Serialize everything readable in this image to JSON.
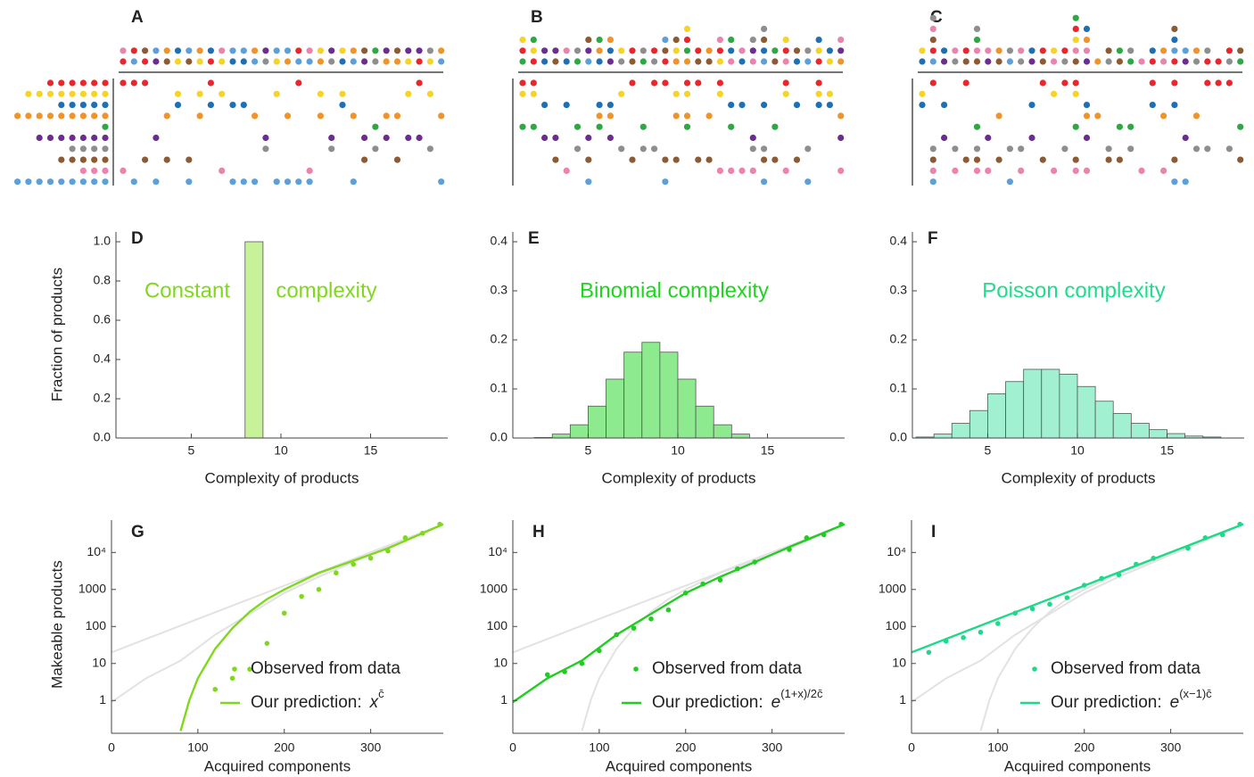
{
  "chart_data": [
    {
      "type": "matrix",
      "label": "A"
    },
    {
      "type": "matrix",
      "label": "B"
    },
    {
      "type": "matrix",
      "label": "C"
    },
    {
      "type": "histogram",
      "label": "D",
      "annotations": [
        "Constant",
        "complexity"
      ],
      "annotation_color": "#7fd81c",
      "bins": [
        8,
        9
      ],
      "counts": [
        1.0
      ],
      "color": "#c8f29a",
      "xlabel": "Complexity of products",
      "ylabel": "Fraction of products",
      "xlim": [
        0.8,
        19.3
      ],
      "ylim": [
        0,
        1.05
      ],
      "xticks": [
        5,
        10,
        15
      ],
      "yticks": [
        {
          "value": 0,
          "label": "0.0"
        },
        0.2,
        0.4,
        0.6,
        0.8,
        {
          "value": 1,
          "label": "1.0"
        }
      ]
    },
    {
      "type": "histogram",
      "label": "E",
      "annotations": [
        "Binomial complexity"
      ],
      "annotation_color": "#1fd41f",
      "bins": [
        2,
        3,
        4,
        5,
        6,
        7,
        8,
        9,
        10,
        11,
        12,
        13,
        14
      ],
      "counts": [
        0.001,
        0.008,
        0.027,
        0.065,
        0.12,
        0.175,
        0.195,
        0.175,
        0.12,
        0.065,
        0.027,
        0.008
      ],
      "color": "#8eea8e",
      "xlabel": "Complexity of products",
      "xlim": [
        0.8,
        19.3
      ],
      "ylim": [
        0,
        0.42
      ],
      "xticks": [
        5,
        10,
        15
      ],
      "yticks": [
        {
          "value": 0,
          "label": "0.0"
        },
        0.1,
        0.2,
        0.3,
        0.4
      ]
    },
    {
      "type": "histogram",
      "label": "F",
      "annotations": [
        "Poisson complexity"
      ],
      "annotation_color": "#1fdc8c",
      "bins": [
        1,
        2,
        3,
        4,
        5,
        6,
        7,
        8,
        9,
        10,
        11,
        12,
        13,
        14,
        15,
        16,
        17,
        18
      ],
      "counts": [
        0.002,
        0.008,
        0.03,
        0.056,
        0.09,
        0.115,
        0.14,
        0.14,
        0.13,
        0.105,
        0.075,
        0.05,
        0.03,
        0.017,
        0.009,
        0.004,
        0.002
      ],
      "color": "#a2f0d2",
      "xlabel": "Complexity of products",
      "xlim": [
        0.8,
        19.3
      ],
      "ylim": [
        0,
        0.42
      ],
      "xticks": [
        5,
        10,
        15
      ],
      "yticks": [
        {
          "value": 0,
          "label": "0.0"
        },
        0.1,
        0.2,
        0.3,
        0.4
      ]
    },
    {
      "type": "line",
      "label": "G",
      "ylog": true,
      "context_color": "#e2e2e2",
      "xlabel": "Acquired components",
      "ylabel": "Makeable products",
      "xlim": [
        0,
        384
      ],
      "ylim": [
        0.13,
        75000
      ],
      "xticks": [
        0,
        100,
        200,
        300
      ],
      "yticks": [
        1,
        10,
        100,
        1000,
        {
          "value": 10000,
          "label": "10⁴"
        }
      ],
      "series": [
        {
          "name": "Observed from data",
          "mode": "markers",
          "color": "#7fd81c",
          "x": [
            120,
            140,
            160,
            180,
            200,
            220,
            240,
            260,
            280,
            300,
            320,
            340,
            360,
            380
          ],
          "values": [
            2,
            4,
            7,
            35,
            230,
            650,
            1000,
            2800,
            4800,
            7000,
            11000,
            25000,
            33000,
            58000
          ]
        },
        {
          "name": "Our prediction:",
          "mode": "line",
          "color": "#7fd81c",
          "formula": {
            "base": "x",
            "exponent": "c̄"
          },
          "x": [
            80,
            90,
            100,
            120,
            140,
            160,
            180,
            200,
            240,
            280,
            320,
            384
          ],
          "values": [
            0.15,
            1,
            4,
            25,
            90,
            250,
            550,
            1000,
            2800,
            6000,
            13000,
            58000
          ]
        }
      ]
    },
    {
      "type": "line",
      "label": "H",
      "ylog": true,
      "context_color": "#e2e2e2",
      "xlabel": "Acquired components",
      "xlim": [
        0,
        384
      ],
      "ylim": [
        0.13,
        75000
      ],
      "xticks": [
        0,
        100,
        200,
        300
      ],
      "yticks": [
        1,
        10,
        100,
        1000,
        {
          "value": 10000,
          "label": "10⁴"
        }
      ],
      "series": [
        {
          "name": "Observed from data",
          "mode": "markers",
          "color": "#22cc22",
          "x": [
            40,
            60,
            80,
            100,
            120,
            140,
            160,
            180,
            200,
            220,
            240,
            260,
            280,
            320,
            340,
            360,
            380
          ],
          "values": [
            5,
            6,
            10,
            22,
            60,
            90,
            160,
            280,
            800,
            1400,
            1800,
            3600,
            5500,
            12000,
            25000,
            30000,
            58000
          ]
        },
        {
          "name": "Our prediction:",
          "mode": "line",
          "color": "#22cc22",
          "formula": {
            "base": "e",
            "exponent": "(1+x)/2c̄"
          },
          "x": [
            0,
            40,
            80,
            120,
            160,
            200,
            240,
            280,
            320,
            384
          ],
          "values": [
            0.9,
            4,
            12,
            60,
            220,
            800,
            2200,
            5500,
            14000,
            58000
          ]
        }
      ]
    },
    {
      "type": "line",
      "label": "I",
      "ylog": true,
      "context_color": "#e2e2e2",
      "xlabel": "Acquired components",
      "xlim": [
        0,
        384
      ],
      "ylim": [
        0.13,
        75000
      ],
      "xticks": [
        0,
        100,
        200,
        300
      ],
      "yticks": [
        1,
        10,
        100,
        1000,
        {
          "value": 10000,
          "label": "10⁴"
        }
      ],
      "series": [
        {
          "name": "Observed from data",
          "mode": "markers",
          "color": "#1fd98a",
          "x": [
            20,
            40,
            60,
            80,
            100,
            120,
            140,
            160,
            180,
            200,
            220,
            240,
            260,
            280,
            320,
            340,
            360,
            380
          ],
          "values": [
            20,
            40,
            50,
            70,
            120,
            230,
            300,
            400,
            600,
            1300,
            2000,
            2500,
            4800,
            7000,
            13000,
            25000,
            30000,
            58000
          ]
        },
        {
          "name": "Our prediction:",
          "mode": "line",
          "color": "#1fd98a",
          "formula": {
            "base": "e",
            "exponent": "(x−1)c̄"
          },
          "x": [
            0,
            100,
            200,
            300,
            384
          ],
          "values": [
            20,
            160,
            1270,
            10100,
            58000
          ]
        }
      ]
    }
  ]
}
